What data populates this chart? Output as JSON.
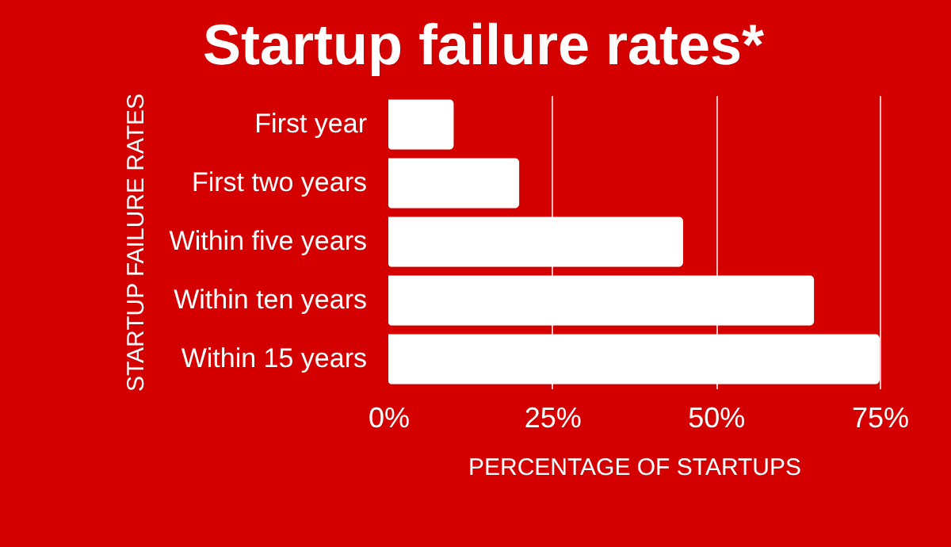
{
  "chart_data": {
    "type": "bar",
    "orientation": "horizontal",
    "title": "Startup failure rates*",
    "xlabel": "PERCENTAGE OF STARTUPS",
    "ylabel": "STARTUP FAILURE RATES",
    "categories": [
      "First year",
      "First two years",
      "Within five years",
      "Within ten years",
      "Within 15 years"
    ],
    "values": [
      10,
      20,
      45,
      65,
      75
    ],
    "color": "#ffffff",
    "xlim": [
      0,
      75
    ],
    "xticks": [
      {
        "value": 0,
        "label": "0%"
      },
      {
        "value": 25,
        "label": "25%"
      },
      {
        "value": 50,
        "label": "50%"
      },
      {
        "value": 75,
        "label": "75%"
      }
    ],
    "grid": "x"
  }
}
